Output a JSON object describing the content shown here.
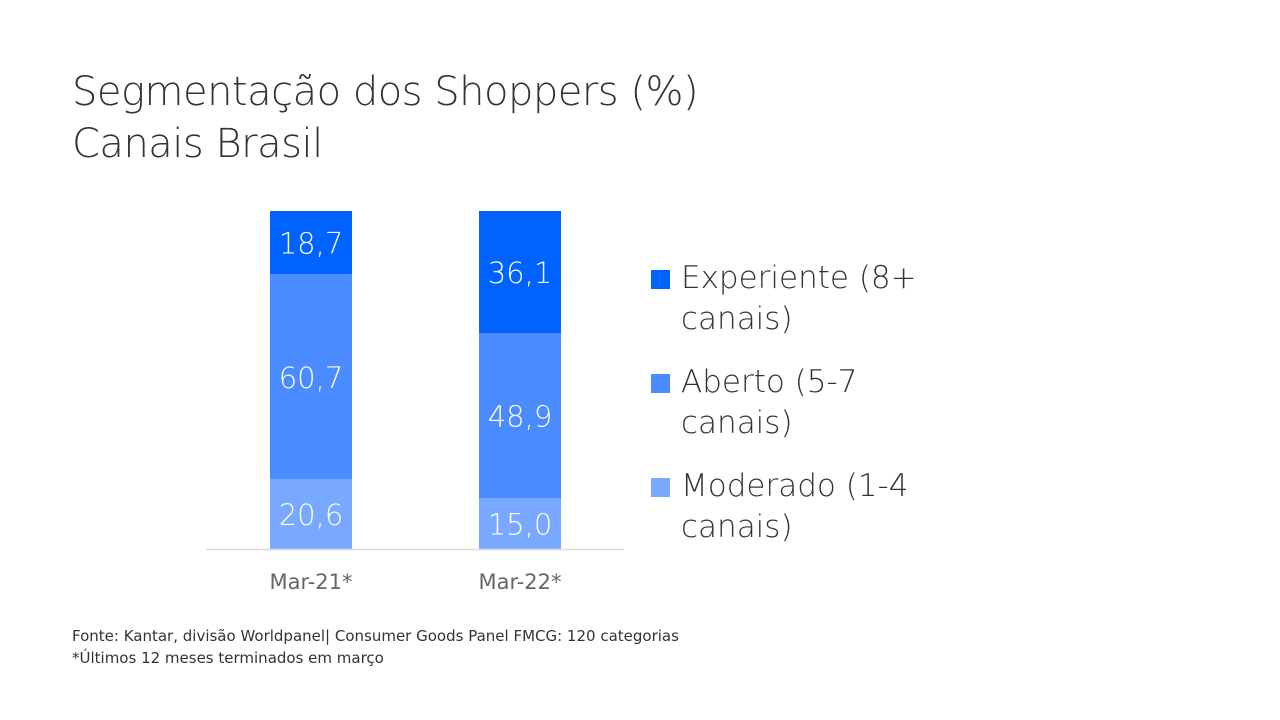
{
  "title": {
    "line1": "Segmentação dos Shoppers (%)",
    "line2": "Canais Brasil"
  },
  "chart_data": {
    "type": "bar",
    "stacked": true,
    "categories": [
      "Mar-21*",
      "Mar-22*"
    ],
    "series": [
      {
        "name": "Moderado (1-4 canais)",
        "values": [
          20.6,
          15.0
        ],
        "labels": [
          "20,6",
          "15,0"
        ],
        "color": "#78a8ff"
      },
      {
        "name": "Aberto (5-7 canais)",
        "values": [
          60.7,
          48.9
        ],
        "labels": [
          "60,7",
          "48,9"
        ],
        "color": "#4a8bff"
      },
      {
        "name": "Experiente (8+ canais)",
        "values": [
          18.7,
          36.1
        ],
        "labels": [
          "18,7",
          "36,1"
        ],
        "color": "#0062ff"
      }
    ],
    "ylim": [
      0,
      100
    ],
    "grid": false,
    "legend": "right"
  },
  "legend": [
    {
      "label": "Experiente (8+ canais)",
      "color": "#0062ff"
    },
    {
      "label": "Aberto (5-7 canais)",
      "color": "#4a8bff"
    },
    {
      "label": "Moderado (1-4 canais)",
      "color": "#78a8ff"
    }
  ],
  "footnote": {
    "source": "Fonte: Kantar, divisão Worldpanel| Consumer Goods Panel FMCG: 120 categorias",
    "note": "*Últimos 12 meses terminados em março"
  }
}
